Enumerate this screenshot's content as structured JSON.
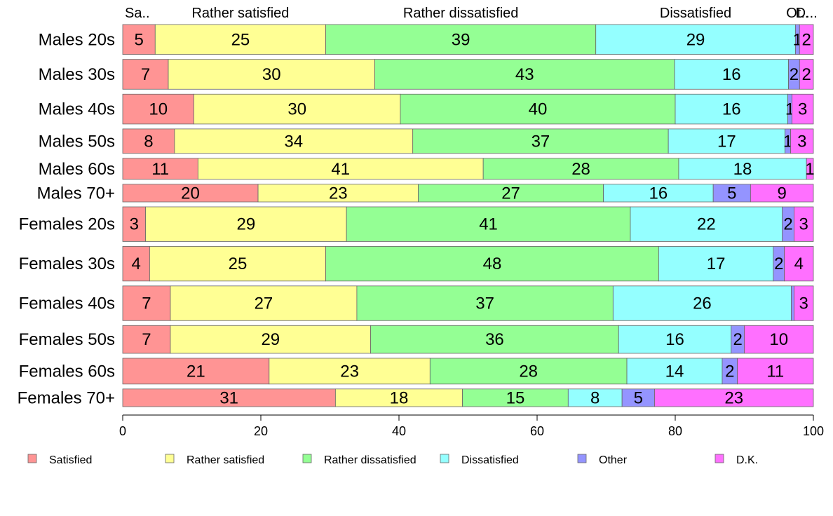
{
  "chart_data": {
    "type": "bar",
    "orientation": "horizontal",
    "stacked": true,
    "categories": [
      "Males 20s",
      "Males 30s",
      "Males 40s",
      "Males 50s",
      "Males 60s",
      "Males 70+",
      "Females 20s",
      "Females 30s",
      "Females 40s",
      "Females 50s",
      "Females 60s",
      "Females 70+"
    ],
    "category_weights": [
      44,
      44,
      44,
      36,
      31,
      26,
      51,
      51,
      51,
      41,
      38,
      26
    ],
    "series": [
      {
        "name": "Satisfied",
        "short": "Sa..",
        "color": "#FF9494",
        "values": [
          4.7,
          6.6,
          10.3,
          7.5,
          10.9,
          19.6,
          3.3,
          3.9,
          6.9,
          6.9,
          21.2,
          30.8
        ],
        "labels": [
          "5",
          "7",
          "10",
          "8",
          "11",
          "20",
          "3",
          "4",
          "7",
          "7",
          "21",
          "31"
        ]
      },
      {
        "name": "Rather satisfied",
        "short": "Rather satisfied",
        "color": "#FFFF94",
        "values": [
          24.7,
          29.9,
          29.9,
          34.5,
          41.3,
          23.2,
          29.1,
          25.5,
          27.0,
          29.0,
          23.3,
          18.4
        ],
        "labels": [
          "25",
          "30",
          "30",
          "34",
          "41",
          "23",
          "29",
          "25",
          "27",
          "29",
          "23",
          "18"
        ]
      },
      {
        "name": "Rather dissatisfied",
        "short": "Rather dissatisfied",
        "color": "#94FF94",
        "values": [
          39.1,
          43.4,
          39.8,
          37.0,
          28.3,
          26.8,
          41.1,
          48.2,
          37.1,
          35.9,
          28.5,
          15.3
        ],
        "labels": [
          "39",
          "43",
          "40",
          "37",
          "28",
          "27",
          "41",
          "48",
          "37",
          "36",
          "28",
          "15"
        ]
      },
      {
        "name": "Dissatisfied",
        "short": "Dissatisfied",
        "color": "#94FFFF",
        "values": [
          28.9,
          16.5,
          16.3,
          16.9,
          18.5,
          15.9,
          22.0,
          16.6,
          25.8,
          16.3,
          13.8,
          7.8
        ],
        "labels": [
          "29",
          "16",
          "16",
          "17",
          "18",
          "16",
          "22",
          "17",
          "26",
          "16",
          "14",
          "8"
        ]
      },
      {
        "name": "Other",
        "short": "Ot..",
        "color": "#9494FF",
        "values": [
          0.6,
          1.6,
          0.6,
          0.8,
          0.0,
          5.4,
          1.7,
          1.6,
          0.4,
          1.9,
          2.2,
          4.7
        ],
        "labels": [
          "1",
          "2",
          "1",
          "1",
          "",
          "5",
          "2",
          "2",
          "",
          "2",
          "2",
          "5"
        ]
      },
      {
        "name": "D.K.",
        "short": "D...",
        "color": "#FF70FF",
        "values": [
          2.0,
          2.0,
          3.1,
          3.3,
          1.0,
          9.1,
          2.8,
          4.2,
          2.8,
          10.0,
          11.0,
          23.0
        ],
        "labels": [
          "2",
          "2",
          "3",
          "3",
          "1",
          "9",
          "3",
          "4",
          "3",
          "10",
          "11",
          "23"
        ]
      }
    ],
    "xlim": [
      0,
      100
    ],
    "xticks": [
      "0",
      "20",
      "40",
      "60",
      "80",
      "100"
    ],
    "xlabel": "",
    "ylabel": "",
    "title": "",
    "grid": false,
    "legend_position": "bottom",
    "top_labels": [
      "Sa..",
      "Rather satisfied",
      "Rather dissatisfied",
      "Dissatisfied",
      "Ot..",
      "D..."
    ]
  }
}
